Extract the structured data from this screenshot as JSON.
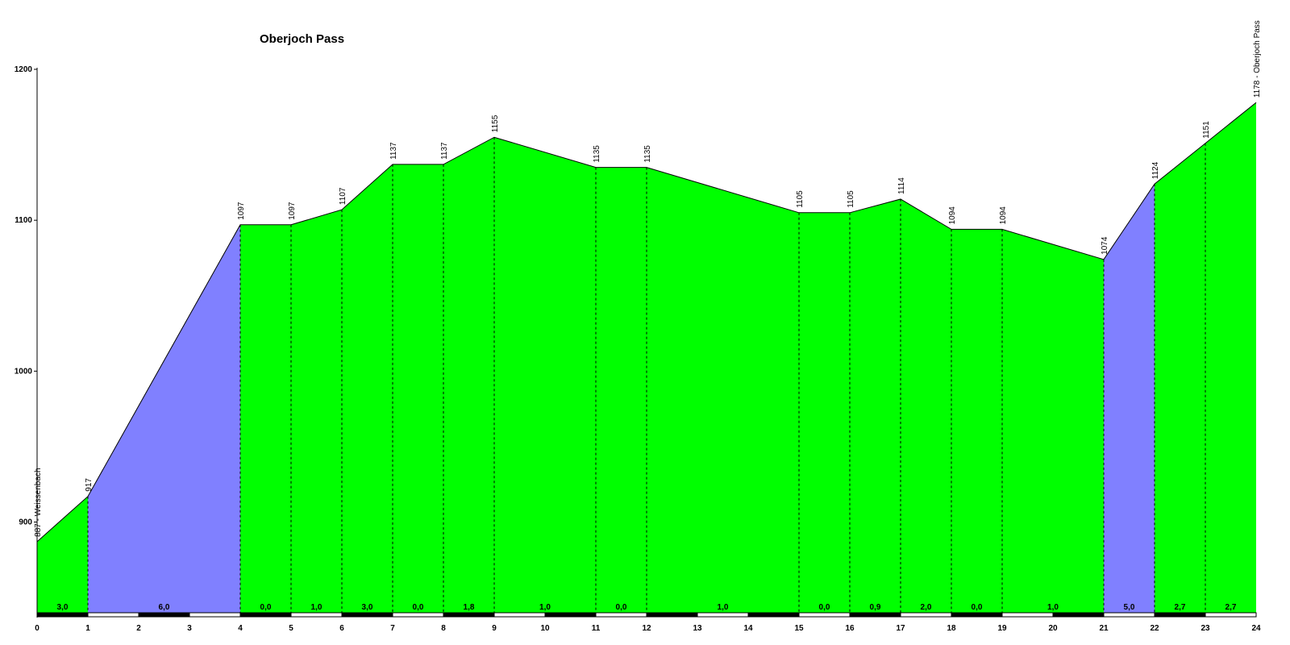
{
  "chart_data": {
    "type": "area",
    "title": "Oberjoch Pass",
    "xlabel": "",
    "ylabel": "",
    "xlim": [
      0,
      24
    ],
    "ylim": [
      840,
      1200
    ],
    "yticks": [
      900,
      1000,
      1100,
      1200
    ],
    "xticks": [
      0,
      1,
      2,
      3,
      4,
      5,
      6,
      7,
      8,
      9,
      10,
      11,
      12,
      13,
      14,
      15,
      16,
      17,
      18,
      19,
      20,
      21,
      22,
      23,
      24
    ],
    "points": [
      {
        "x": 0,
        "y": 887,
        "label": "887 - Weissenbach"
      },
      {
        "x": 1,
        "y": 917,
        "label": "917"
      },
      {
        "x": 4,
        "y": 1097,
        "label": "1097"
      },
      {
        "x": 5,
        "y": 1097,
        "label": "1097"
      },
      {
        "x": 6,
        "y": 1107,
        "label": "1107"
      },
      {
        "x": 7,
        "y": 1137,
        "label": "1137"
      },
      {
        "x": 8,
        "y": 1137,
        "label": "1137"
      },
      {
        "x": 9,
        "y": 1155,
        "label": "1155"
      },
      {
        "x": 11,
        "y": 1135,
        "label": "1135"
      },
      {
        "x": 12,
        "y": 1135,
        "label": "1135"
      },
      {
        "x": 15,
        "y": 1105,
        "label": "1105"
      },
      {
        "x": 16,
        "y": 1105,
        "label": "1105"
      },
      {
        "x": 17,
        "y": 1114,
        "label": "1114"
      },
      {
        "x": 18,
        "y": 1094,
        "label": "1094"
      },
      {
        "x": 19,
        "y": 1094,
        "label": "1094"
      },
      {
        "x": 21,
        "y": 1074,
        "label": "1074"
      },
      {
        "x": 22,
        "y": 1124,
        "label": "1124"
      },
      {
        "x": 23,
        "y": 1151,
        "label": "1151"
      },
      {
        "x": 24,
        "y": 1178,
        "label": "1178 - Oberjoch Pass"
      }
    ],
    "segments": [
      {
        "from": 0,
        "to": 1,
        "grade": "3,0",
        "color": "#00ff00"
      },
      {
        "from": 1,
        "to": 4,
        "grade": "6,0",
        "color": "#8080ff"
      },
      {
        "from": 4,
        "to": 5,
        "grade": "0,0",
        "color": "#00ff00"
      },
      {
        "from": 5,
        "to": 6,
        "grade": "1,0",
        "color": "#00ff00"
      },
      {
        "from": 6,
        "to": 7,
        "grade": "3,0",
        "color": "#00ff00"
      },
      {
        "from": 7,
        "to": 8,
        "grade": "0,0",
        "color": "#00ff00"
      },
      {
        "from": 8,
        "to": 9,
        "grade": "1,8",
        "color": "#00ff00"
      },
      {
        "from": 9,
        "to": 11,
        "grade": "1,0",
        "color": "#00ff00"
      },
      {
        "from": 11,
        "to": 12,
        "grade": "0,0",
        "color": "#00ff00"
      },
      {
        "from": 12,
        "to": 15,
        "grade": "1,0",
        "color": "#00ff00"
      },
      {
        "from": 15,
        "to": 16,
        "grade": "0,0",
        "color": "#00ff00"
      },
      {
        "from": 16,
        "to": 17,
        "grade": "0,9",
        "color": "#00ff00"
      },
      {
        "from": 17,
        "to": 18,
        "grade": "2,0",
        "color": "#00ff00"
      },
      {
        "from": 18,
        "to": 19,
        "grade": "0,0",
        "color": "#00ff00"
      },
      {
        "from": 19,
        "to": 21,
        "grade": "1,0",
        "color": "#00ff00"
      },
      {
        "from": 21,
        "to": 22,
        "grade": "5,0",
        "color": "#8080ff"
      },
      {
        "from": 22,
        "to": 23,
        "grade": "2,7",
        "color": "#00ff00"
      },
      {
        "from": 23,
        "to": 24,
        "grade": "2,7",
        "color": "#00ff00"
      }
    ],
    "grid": false,
    "legend": "none"
  }
}
